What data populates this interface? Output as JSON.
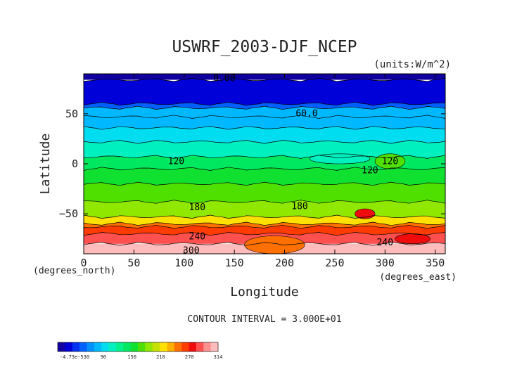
{
  "chart_data": {
    "type": "heatmap",
    "title": "USWRF_2003-DJF_NCEP",
    "units_label": "(units:W/m^2)",
    "xlabel": "Longitude",
    "ylabel": "Latitude",
    "x_unit_note": "(degrees_east)",
    "y_unit_note": "(degrees_north)",
    "xlim": [
      0,
      360
    ],
    "ylim": [
      -90,
      90
    ],
    "xticks": [
      0,
      50,
      100,
      150,
      200,
      250,
      300,
      350
    ],
    "yticks": [
      -50,
      0,
      50
    ],
    "xtick_labels": [
      "0",
      "50",
      "100",
      "150",
      "200",
      "250",
      "300",
      "350"
    ],
    "ytick_labels": [
      "−50",
      "0",
      "50"
    ],
    "contour_interval_text": "CONTOUR INTERVAL = 3.000E+01",
    "contour_labels": [
      {
        "text": "0.00",
        "lon": 140,
        "lat": 86
      },
      {
        "text": "60.0",
        "lon": 222,
        "lat": 51
      },
      {
        "text": "120",
        "lon": 92,
        "lat": 3
      },
      {
        "text": "120",
        "lon": 305,
        "lat": 3
      },
      {
        "text": "120",
        "lon": 285,
        "lat": -6
      },
      {
        "text": "180",
        "lon": 113,
        "lat": -43
      },
      {
        "text": "180",
        "lon": 215,
        "lat": -42
      },
      {
        "text": "240",
        "lon": 113,
        "lat": -72
      },
      {
        "text": "240",
        "lon": 300,
        "lat": -78
      },
      {
        "text": "300",
        "lon": 107,
        "lat": -86
      }
    ],
    "zonal_bands": [
      {
        "lat_range": [
          84,
          90
        ],
        "value": 0
      },
      {
        "lat_range": [
          60,
          84
        ],
        "value": 15
      },
      {
        "lat_range": [
          56,
          60
        ],
        "value": 45
      },
      {
        "lat_range": [
          47,
          56
        ],
        "value": 75
      },
      {
        "lat_range": [
          36,
          47
        ],
        "value": 85
      },
      {
        "lat_range": [
          22,
          36
        ],
        "value": 95
      },
      {
        "lat_range": [
          7,
          22
        ],
        "value": 110
      },
      {
        "lat_range": [
          -5,
          7
        ],
        "value": 135
      },
      {
        "lat_range": [
          -20,
          -5
        ],
        "value": 150
      },
      {
        "lat_range": [
          -38,
          -20
        ],
        "value": 160
      },
      {
        "lat_range": [
          -53,
          -38
        ],
        "value": 185
      },
      {
        "lat_range": [
          -60,
          -53
        ],
        "value": 210
      },
      {
        "lat_range": [
          -63,
          -60
        ],
        "value": 230
      },
      {
        "lat_range": [
          -70,
          -63
        ],
        "value": 245
      },
      {
        "lat_range": [
          -80,
          -70
        ],
        "value": 275
      },
      {
        "lat_range": [
          -90,
          -80
        ],
        "value": 310
      }
    ],
    "regional_features": [
      {
        "lon_range": [
          225,
          285
        ],
        "lat_range": [
          0,
          10
        ],
        "value": 105
      },
      {
        "lon_range": [
          290,
          320
        ],
        "lat_range": [
          -5,
          10
        ],
        "value": 160
      },
      {
        "lon_range": [
          160,
          220
        ],
        "lat_range": [
          -90,
          -72
        ],
        "value": 235
      },
      {
        "lon_range": [
          310,
          345
        ],
        "lat_range": [
          -80,
          -70
        ],
        "value": 260
      },
      {
        "lon_range": [
          270,
          290
        ],
        "lat_range": [
          -55,
          -45
        ],
        "value": 265
      }
    ],
    "colorbar": {
      "levels_text": [
        "-4.73e-530",
        "90",
        "150",
        "210",
        "270",
        "314"
      ],
      "colors": [
        "#1100a0",
        "#0000d8",
        "#0030f0",
        "#0060ff",
        "#0090ff",
        "#00b8ff",
        "#00dcf0",
        "#00f0c0",
        "#00f08c",
        "#00e860",
        "#10e030",
        "#50e000",
        "#90e800",
        "#c8e000",
        "#ffe000",
        "#ffb000",
        "#ff7000",
        "#ff3c00",
        "#f00c0c",
        "#ff5050",
        "#ff9090",
        "#ffbcbc"
      ],
      "range": [
        0,
        314
      ]
    }
  }
}
